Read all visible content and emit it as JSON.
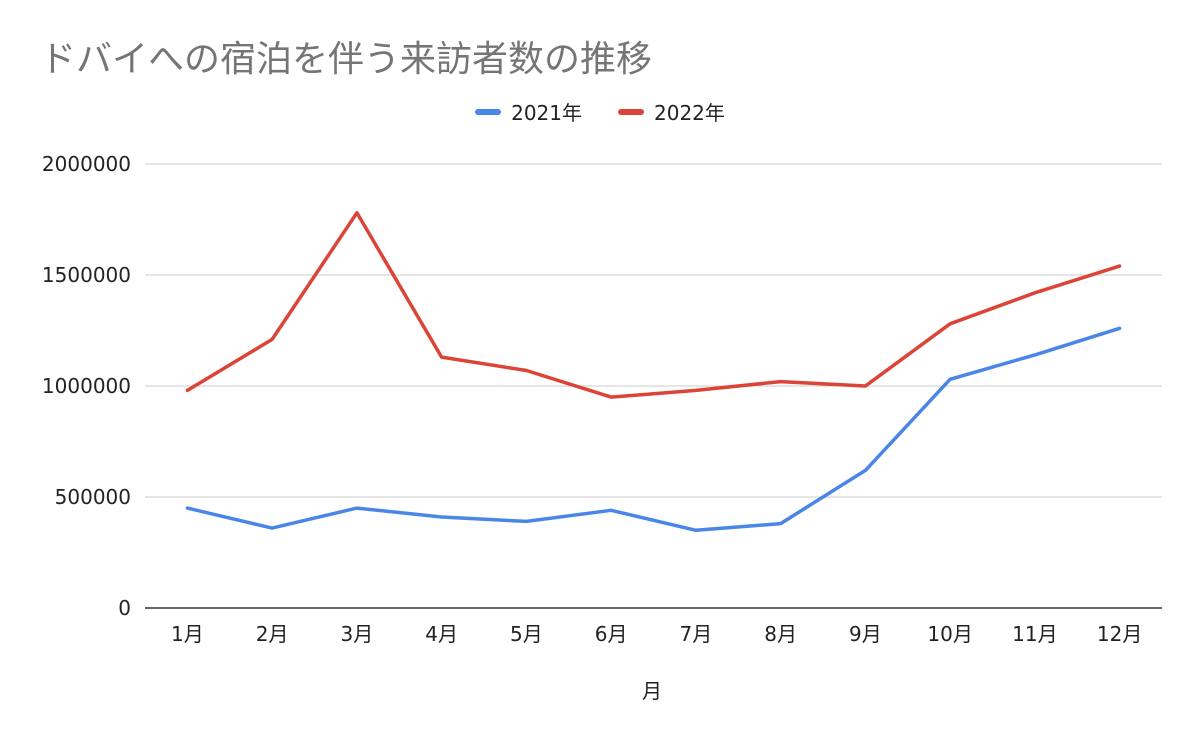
{
  "chart_data": {
    "type": "line",
    "title": "ドバイへの宿泊を伴う来訪者数の推移",
    "xlabel": "月",
    "ylabel": "",
    "categories": [
      "1月",
      "2月",
      "3月",
      "4月",
      "5月",
      "6月",
      "7月",
      "8月",
      "9月",
      "10月",
      "11月",
      "12月"
    ],
    "ylim": [
      0,
      2000000
    ],
    "yticks": [
      "0",
      "500000",
      "1000000",
      "1500000",
      "2000000"
    ],
    "grid": true,
    "legend_position": "top",
    "series": [
      {
        "name": "2021年",
        "color": "#4a86e8",
        "values": [
          450000,
          360000,
          450000,
          410000,
          390000,
          440000,
          350000,
          380000,
          620000,
          1030000,
          1140000,
          1260000
        ]
      },
      {
        "name": "2022年",
        "color": "#db4437",
        "values": [
          980000,
          1210000,
          1780000,
          1130000,
          1070000,
          950000,
          980000,
          1020000,
          1000000,
          1280000,
          1420000,
          1540000
        ]
      }
    ]
  }
}
